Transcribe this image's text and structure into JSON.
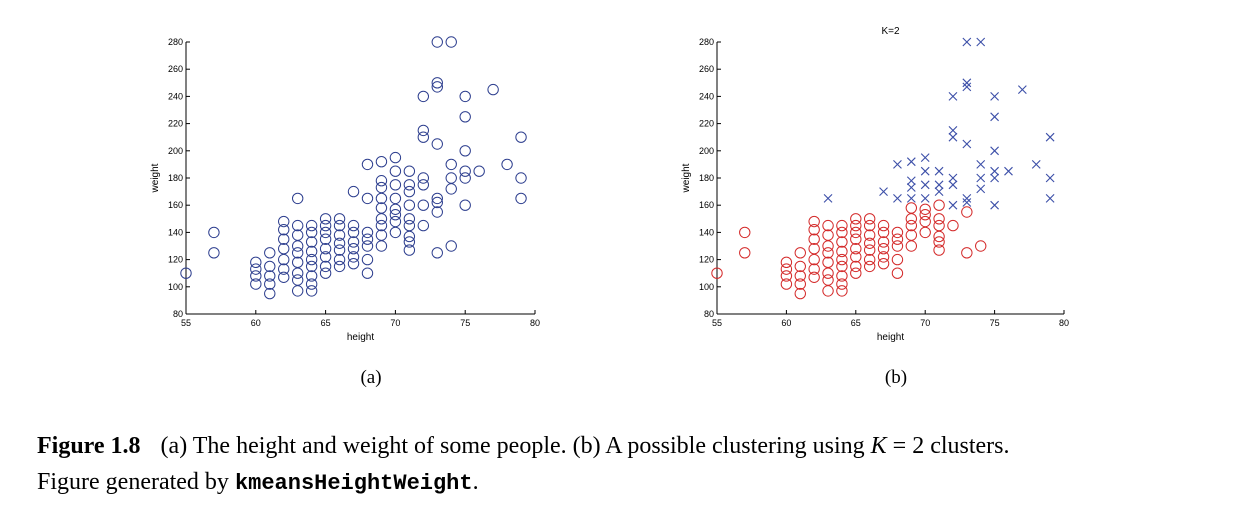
{
  "colors": {
    "circle_blue": "#2e3f8f",
    "cluster_red": "#d42a2a",
    "cluster_blue": "#3c4fa8"
  },
  "caption": {
    "label": "Figure 1.8",
    "text_a": "(a) The height and weight of some people.  (b) A possible clustering using",
    "k_symbol": "K",
    "text_b": "= 2 clusters.",
    "line2_prefix": "Figure generated by",
    "code": "kmeansHeightWeight",
    "line2_suffix": "."
  },
  "chart_data": [
    {
      "type": "scatter",
      "sublabel": "(a)",
      "title": "",
      "xlabel": "height",
      "ylabel": "weight",
      "xlim": [
        55,
        80
      ],
      "ylim": [
        80,
        280
      ],
      "xticks": [
        55,
        60,
        65,
        70,
        75,
        80
      ],
      "yticks": [
        80,
        100,
        120,
        140,
        160,
        180,
        200,
        220,
        240,
        260,
        280
      ],
      "grid": false,
      "marker": "circle",
      "series": [
        {
          "points": [
            [
              55,
              110
            ],
            [
              57,
              140
            ],
            [
              57,
              125
            ],
            [
              60,
              118
            ],
            [
              60,
              113
            ],
            [
              60,
              108
            ],
            [
              60,
              102
            ],
            [
              61,
              125
            ],
            [
              61,
              115
            ],
            [
              61,
              108
            ],
            [
              61,
              102
            ],
            [
              61,
              95
            ],
            [
              62,
              148
            ],
            [
              62,
              142
            ],
            [
              62,
              135
            ],
            [
              62,
              128
            ],
            [
              62,
              120
            ],
            [
              62,
              113
            ],
            [
              62,
              107
            ],
            [
              63,
              165
            ],
            [
              63,
              145
            ],
            [
              63,
              138
            ],
            [
              63,
              130
            ],
            [
              63,
              125
            ],
            [
              63,
              118
            ],
            [
              63,
              110
            ],
            [
              63,
              105
            ],
            [
              63,
              97
            ],
            [
              64,
              145
            ],
            [
              64,
              140
            ],
            [
              64,
              133
            ],
            [
              64,
              126
            ],
            [
              64,
              120
            ],
            [
              64,
              115
            ],
            [
              64,
              108
            ],
            [
              64,
              102
            ],
            [
              64,
              97
            ],
            [
              65,
              150
            ],
            [
              65,
              145
            ],
            [
              65,
              140
            ],
            [
              65,
              135
            ],
            [
              65,
              128
            ],
            [
              65,
              122
            ],
            [
              65,
              115
            ],
            [
              65,
              110
            ],
            [
              66,
              150
            ],
            [
              66,
              145
            ],
            [
              66,
              138
            ],
            [
              66,
              132
            ],
            [
              66,
              127
            ],
            [
              66,
              120
            ],
            [
              66,
              115
            ],
            [
              67,
              170
            ],
            [
              67,
              145
            ],
            [
              67,
              140
            ],
            [
              67,
              133
            ],
            [
              67,
              128
            ],
            [
              67,
              122
            ],
            [
              67,
              117
            ],
            [
              68,
              190
            ],
            [
              68,
              165
            ],
            [
              68,
              140
            ],
            [
              68,
              135
            ],
            [
              68,
              130
            ],
            [
              68,
              120
            ],
            [
              68,
              110
            ],
            [
              69,
              192
            ],
            [
              69,
              178
            ],
            [
              69,
              173
            ],
            [
              69,
              165
            ],
            [
              69,
              158
            ],
            [
              69,
              150
            ],
            [
              69,
              145
            ],
            [
              69,
              138
            ],
            [
              69,
              130
            ],
            [
              70,
              195
            ],
            [
              70,
              185
            ],
            [
              70,
              175
            ],
            [
              70,
              165
            ],
            [
              70,
              157
            ],
            [
              70,
              153
            ],
            [
              70,
              148
            ],
            [
              70,
              140
            ],
            [
              71,
              185
            ],
            [
              71,
              175
            ],
            [
              71,
              170
            ],
            [
              71,
              160
            ],
            [
              71,
              150
            ],
            [
              71,
              145
            ],
            [
              71,
              137
            ],
            [
              71,
              133
            ],
            [
              71,
              127
            ],
            [
              72,
              240
            ],
            [
              72,
              215
            ],
            [
              72,
              210
            ],
            [
              72,
              180
            ],
            [
              72,
              175
            ],
            [
              72,
              160
            ],
            [
              72,
              145
            ],
            [
              73,
              280
            ],
            [
              73,
              250
            ],
            [
              73,
              247
            ],
            [
              73,
              205
            ],
            [
              73,
              165
            ],
            [
              73,
              162
            ],
            [
              73,
              155
            ],
            [
              73,
              125
            ],
            [
              74,
              280
            ],
            [
              74,
              190
            ],
            [
              74,
              180
            ],
            [
              74,
              172
            ],
            [
              74,
              130
            ],
            [
              75,
              240
            ],
            [
              75,
              225
            ],
            [
              75,
              200
            ],
            [
              75,
              185
            ],
            [
              75,
              180
            ],
            [
              75,
              160
            ],
            [
              76,
              185
            ],
            [
              77,
              245
            ],
            [
              78,
              190
            ],
            [
              79,
              210
            ],
            [
              79,
              180
            ],
            [
              79,
              165
            ]
          ]
        }
      ]
    },
    {
      "type": "scatter",
      "sublabel": "(b)",
      "title": "K=2",
      "xlabel": "height",
      "ylabel": "weight",
      "xlim": [
        55,
        80
      ],
      "ylim": [
        80,
        280
      ],
      "xticks": [
        55,
        60,
        65,
        70,
        75,
        80
      ],
      "yticks": [
        80,
        100,
        120,
        140,
        160,
        180,
        200,
        220,
        240,
        260,
        280
      ],
      "grid": false,
      "series": [
        {
          "marker": "circle",
          "color": "#d42a2a",
          "points": [
            [
              55,
              110
            ],
            [
              57,
              140
            ],
            [
              57,
              125
            ],
            [
              60,
              118
            ],
            [
              60,
              113
            ],
            [
              60,
              108
            ],
            [
              60,
              102
            ],
            [
              61,
              125
            ],
            [
              61,
              115
            ],
            [
              61,
              108
            ],
            [
              61,
              102
            ],
            [
              61,
              95
            ],
            [
              62,
              148
            ],
            [
              62,
              142
            ],
            [
              62,
              135
            ],
            [
              62,
              128
            ],
            [
              62,
              120
            ],
            [
              62,
              113
            ],
            [
              62,
              107
            ],
            [
              63,
              145
            ],
            [
              63,
              138
            ],
            [
              63,
              130
            ],
            [
              63,
              125
            ],
            [
              63,
              118
            ],
            [
              63,
              110
            ],
            [
              63,
              105
            ],
            [
              63,
              97
            ],
            [
              64,
              145
            ],
            [
              64,
              140
            ],
            [
              64,
              133
            ],
            [
              64,
              126
            ],
            [
              64,
              120
            ],
            [
              64,
              115
            ],
            [
              64,
              108
            ],
            [
              64,
              102
            ],
            [
              64,
              97
            ],
            [
              65,
              150
            ],
            [
              65,
              145
            ],
            [
              65,
              140
            ],
            [
              65,
              135
            ],
            [
              65,
              128
            ],
            [
              65,
              122
            ],
            [
              65,
              115
            ],
            [
              65,
              110
            ],
            [
              66,
              150
            ],
            [
              66,
              145
            ],
            [
              66,
              138
            ],
            [
              66,
              132
            ],
            [
              66,
              127
            ],
            [
              66,
              120
            ],
            [
              66,
              115
            ],
            [
              67,
              145
            ],
            [
              67,
              140
            ],
            [
              67,
              133
            ],
            [
              67,
              128
            ],
            [
              67,
              122
            ],
            [
              67,
              117
            ],
            [
              68,
              140
            ],
            [
              68,
              135
            ],
            [
              68,
              130
            ],
            [
              68,
              120
            ],
            [
              68,
              110
            ],
            [
              69,
              158
            ],
            [
              69,
              150
            ],
            [
              69,
              145
            ],
            [
              69,
              138
            ],
            [
              69,
              130
            ],
            [
              70,
              157
            ],
            [
              70,
              153
            ],
            [
              70,
              148
            ],
            [
              70,
              140
            ],
            [
              71,
              160
            ],
            [
              71,
              150
            ],
            [
              71,
              145
            ],
            [
              71,
              137
            ],
            [
              71,
              133
            ],
            [
              71,
              127
            ],
            [
              72,
              145
            ],
            [
              73,
              155
            ],
            [
              73,
              125
            ],
            [
              74,
              130
            ]
          ]
        },
        {
          "marker": "x",
          "color": "#3c4fa8",
          "points": [
            [
              63,
              165
            ],
            [
              67,
              170
            ],
            [
              68,
              190
            ],
            [
              68,
              165
            ],
            [
              69,
              192
            ],
            [
              69,
              178
            ],
            [
              69,
              173
            ],
            [
              69,
              165
            ],
            [
              70,
              195
            ],
            [
              70,
              185
            ],
            [
              70,
              175
            ],
            [
              70,
              165
            ],
            [
              71,
              185
            ],
            [
              71,
              175
            ],
            [
              71,
              170
            ],
            [
              72,
              240
            ],
            [
              72,
              215
            ],
            [
              72,
              210
            ],
            [
              72,
              180
            ],
            [
              72,
              175
            ],
            [
              72,
              160
            ],
            [
              73,
              280
            ],
            [
              73,
              250
            ],
            [
              73,
              247
            ],
            [
              73,
              205
            ],
            [
              73,
              165
            ],
            [
              73,
              162
            ],
            [
              74,
              280
            ],
            [
              74,
              190
            ],
            [
              74,
              180
            ],
            [
              74,
              172
            ],
            [
              75,
              240
            ],
            [
              75,
              225
            ],
            [
              75,
              200
            ],
            [
              75,
              185
            ],
            [
              75,
              180
            ],
            [
              75,
              160
            ],
            [
              76,
              185
            ],
            [
              77,
              245
            ],
            [
              78,
              190
            ],
            [
              79,
              210
            ],
            [
              79,
              180
            ],
            [
              79,
              165
            ]
          ]
        }
      ]
    }
  ]
}
